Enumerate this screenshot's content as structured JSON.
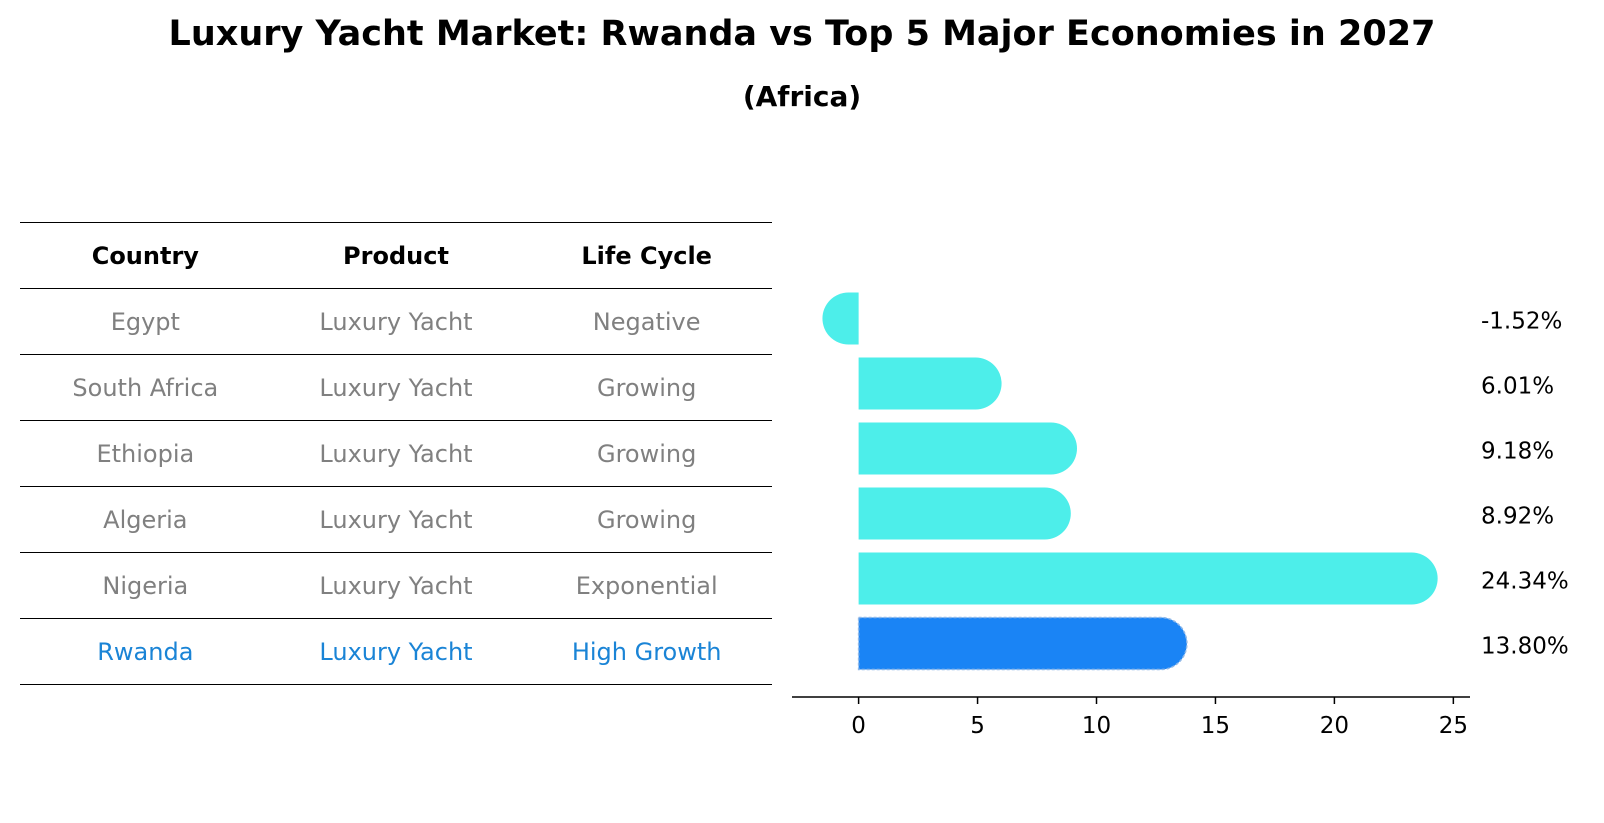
{
  "title": "Luxury Yacht Market: Rwanda vs Top 5 Major Economies in 2027",
  "subtitle": "(Africa)",
  "table": {
    "headers": [
      "Country",
      "Product",
      "Life Cycle"
    ],
    "rows": [
      {
        "country": "Egypt",
        "product": "Luxury Yacht",
        "life_cycle": "Negative"
      },
      {
        "country": "South Africa",
        "product": "Luxury Yacht",
        "life_cycle": "Growing"
      },
      {
        "country": "Ethiopia",
        "product": "Luxury Yacht",
        "life_cycle": "Growing"
      },
      {
        "country": "Algeria",
        "product": "Luxury Yacht",
        "life_cycle": "Growing"
      },
      {
        "country": "Nigeria",
        "product": "Luxury Yacht",
        "life_cycle": "Exponential"
      },
      {
        "country": "Rwanda",
        "product": "Luxury Yacht",
        "life_cycle": "High Growth"
      }
    ]
  },
  "chart_data": {
    "type": "bar",
    "orientation": "horizontal",
    "categories": [
      "Egypt",
      "South Africa",
      "Ethiopia",
      "Algeria",
      "Nigeria",
      "Rwanda"
    ],
    "values": [
      -1.52,
      6.01,
      9.18,
      8.92,
      24.34,
      13.8
    ],
    "value_labels": [
      "-1.52%",
      "6.01%",
      "9.18%",
      "8.92%",
      "24.34%",
      "13.80%"
    ],
    "highlight": "Rwanda",
    "xlim": [
      -2.8,
      25.7
    ],
    "xticks": [
      0,
      5,
      10,
      15,
      20,
      25
    ],
    "colors": {
      "default": "#4deeea",
      "highlight": "#1a84f5"
    },
    "grid": false
  }
}
